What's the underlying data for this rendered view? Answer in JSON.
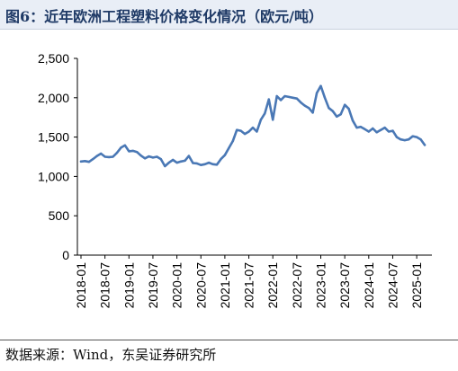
{
  "header": {
    "title": "图6：近年欧洲工程塑料价格变化情况（欧元/吨）"
  },
  "footer": {
    "source": "数据来源：Wind，东吴证券研究所"
  },
  "chart_data": {
    "type": "line",
    "title": "图6：近年欧洲工程塑料价格变化情况（欧元/吨）",
    "xlabel": "",
    "ylabel": "",
    "ylim": [
      0,
      2500
    ],
    "yticks": [
      0,
      500,
      1000,
      1500,
      2000,
      2500
    ],
    "ytick_labels": [
      "0",
      "500",
      "1,000",
      "1,500",
      "2,000",
      "2,500"
    ],
    "xtick_labels": [
      "2018-01",
      "2018-07",
      "2019-01",
      "2019-07",
      "2020-01",
      "2020-07",
      "2021-01",
      "2021-07",
      "2022-01",
      "2022-07",
      "2023-01",
      "2023-07",
      "2024-01",
      "2024-07",
      "2025-01"
    ],
    "grid": false,
    "line_color": "#4a78b5",
    "series": [
      {
        "values": [
          1190,
          1195,
          1185,
          1220,
          1260,
          1290,
          1250,
          1245,
          1250,
          1300,
          1365,
          1395,
          1320,
          1325,
          1310,
          1265,
          1230,
          1255,
          1240,
          1250,
          1220,
          1130,
          1175,
          1210,
          1175,
          1190,
          1200,
          1260,
          1170,
          1165,
          1145,
          1155,
          1175,
          1155,
          1150,
          1220,
          1270,
          1360,
          1450,
          1590,
          1580,
          1540,
          1570,
          1620,
          1570,
          1720,
          1800,
          1980,
          1720,
          2020,
          1970,
          2020,
          2010,
          2000,
          1990,
          1940,
          1900,
          1870,
          1810,
          2060,
          2150,
          2000,
          1870,
          1830,
          1760,
          1790,
          1910,
          1860,
          1710,
          1620,
          1630,
          1600,
          1570,
          1610,
          1560,
          1590,
          1620,
          1570,
          1580,
          1500,
          1470,
          1460,
          1470,
          1510,
          1500,
          1470,
          1400
        ]
      }
    ]
  }
}
